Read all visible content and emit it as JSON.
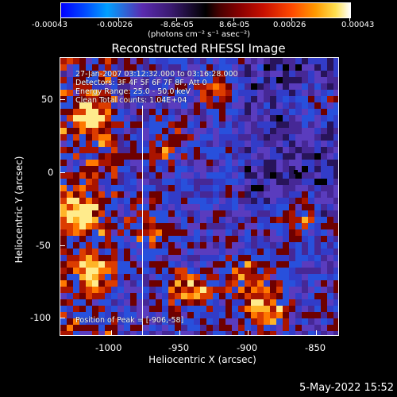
{
  "colorbar": {
    "ticks": [
      "-0.00043",
      "-0.00026",
      "-8.6e-05",
      "8.6e-05",
      "0.00026",
      "0.00043"
    ],
    "unit_label": "(photons cm⁻² s⁻¹ asec⁻²)"
  },
  "title": "Reconstructed RHESSI Image",
  "annotations": {
    "time": "27-Jan-2007 03:12:32.000 to 03:16:28.000",
    "detectors": "Detectors: 3F 4F 5F 6F 7F 8F, Att 0",
    "energy": "Energy Range: 25.0 - 50.0 keV",
    "method": "Clean    Total counts: 1.04E+04",
    "peak": "Position of Peak = [-906,-58]"
  },
  "axes": {
    "xlabel": "Heliocentric X (arcsec)",
    "ylabel": "Heliocentric Y (arcsec)",
    "xticks": [
      "-1000",
      "-950",
      "-900",
      "-850"
    ],
    "yticks": [
      "50",
      "0",
      "-50",
      "-100"
    ]
  },
  "footer": {
    "date": "5-May-2022 15:52"
  }
}
